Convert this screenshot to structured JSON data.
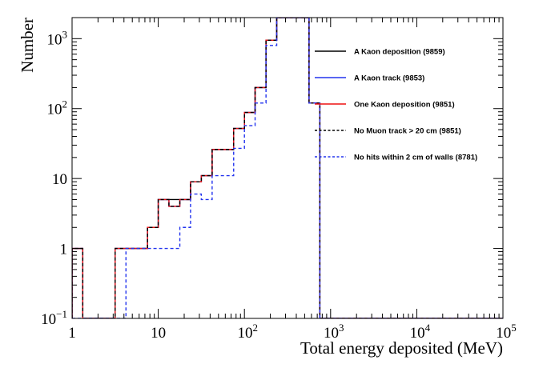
{
  "chart_data": {
    "type": "histogram",
    "xlabel": "Total energy deposited (MeV)",
    "ylabel": "Number",
    "xscale": "log",
    "yscale": "log",
    "xlim": [
      1,
      100000
    ],
    "ylim": [
      0.1,
      2000
    ],
    "grid": false,
    "legend_position": "right",
    "x_tick_labels": [
      {
        "value": 1,
        "base": "1",
        "exp": ""
      },
      {
        "value": 10,
        "base": "10",
        "exp": ""
      },
      {
        "value": 100,
        "base": "10",
        "exp": "2"
      },
      {
        "value": 1000,
        "base": "10",
        "exp": "3"
      },
      {
        "value": 10000,
        "base": "10",
        "exp": "4"
      },
      {
        "value": 100000,
        "base": "10",
        "exp": "5"
      }
    ],
    "y_tick_labels": [
      {
        "value": 0.1,
        "base": "10",
        "exp": "−1"
      },
      {
        "value": 1,
        "base": "1",
        "exp": ""
      },
      {
        "value": 10,
        "base": "10",
        "exp": ""
      },
      {
        "value": 100,
        "base": "10",
        "exp": "2"
      },
      {
        "value": 1000,
        "base": "10",
        "exp": "3"
      }
    ],
    "bin_edges": [
      1,
      1.33,
      1.78,
      2.37,
      3.16,
      4.22,
      5.62,
      7.5,
      10,
      13.3,
      17.8,
      23.7,
      31.6,
      42.2,
      56.2,
      75,
      100,
      133,
      178,
      237,
      316,
      422,
      562,
      750
    ],
    "series": [
      {
        "name": "A Kaon deposition (9859)",
        "color": "#000000",
        "dash": "solid",
        "values": [
          1,
          0,
          0,
          0,
          1,
          1,
          1,
          2,
          5,
          5,
          5,
          9,
          11,
          26,
          26,
          52,
          88,
          200,
          950,
          2000,
          2000,
          2000,
          120
        ]
      },
      {
        "name": "A Kaon track (9853)",
        "color": "#2233ee",
        "dash": "solid",
        "values": [
          1,
          0,
          0,
          0,
          1,
          1,
          1,
          2,
          5,
          4,
          5,
          9,
          11,
          26,
          26,
          52,
          88,
          200,
          950,
          2000,
          2000,
          2000,
          120
        ]
      },
      {
        "name": "One Kaon deposition (9851)",
        "color": "#ee1111",
        "dash": "solid",
        "values": [
          1,
          0,
          0,
          0,
          1,
          1,
          1,
          2,
          5,
          4,
          5,
          9,
          11,
          26,
          26,
          52,
          88,
          200,
          950,
          2000,
          2000,
          2000,
          120
        ]
      },
      {
        "name": "No Muon track > 20 cm (9851)",
        "color": "#000000",
        "dash": "dashed",
        "values": [
          1,
          0,
          0,
          0,
          1,
          1,
          1,
          2,
          5,
          4,
          5,
          9,
          11,
          26,
          26,
          52,
          88,
          200,
          950,
          2000,
          2000,
          2000,
          120
        ]
      },
      {
        "name": "No hits within 2 cm of walls (8781)",
        "color": "#2233ee",
        "dash": "dashed",
        "values": [
          0,
          0,
          0,
          0,
          0,
          1,
          1,
          1,
          1,
          1,
          2,
          6,
          5,
          11,
          11,
          27,
          57,
          120,
          800,
          2000,
          2000,
          2000,
          120
        ]
      }
    ]
  }
}
